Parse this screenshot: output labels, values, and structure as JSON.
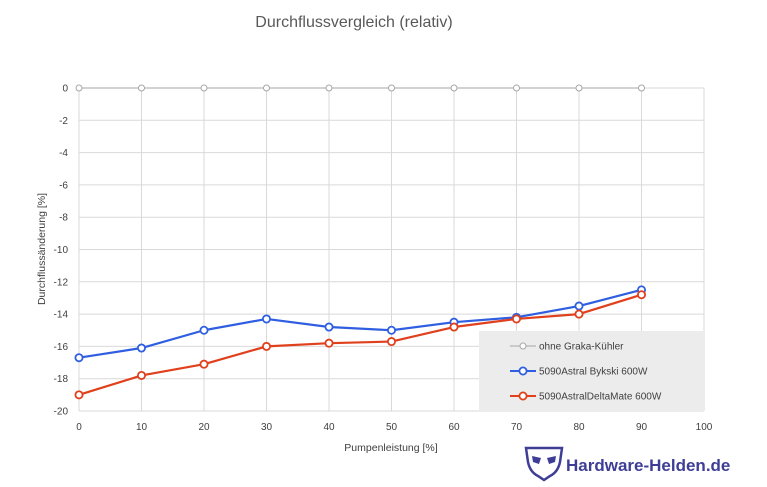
{
  "chart_data": {
    "type": "line",
    "title": "Durchflussvergleich (relativ)",
    "xlabel": "Pumpenleistung [%]",
    "ylabel": "Durchflussänderung [%]",
    "xlim": [
      0,
      100
    ],
    "ylim": [
      -20,
      0
    ],
    "x_ticks": [
      0,
      10,
      20,
      30,
      40,
      50,
      60,
      70,
      80,
      90,
      100
    ],
    "y_ticks": [
      0,
      -2,
      -4,
      -6,
      -8,
      -10,
      -12,
      -14,
      -16,
      -18,
      -20
    ],
    "grid": true,
    "legend_position": "bottom-right",
    "series": [
      {
        "name": "ohne Graka-Kühler",
        "color": "#a6a6a6",
        "x": [
          0,
          10,
          20,
          30,
          40,
          50,
          60,
          70,
          80,
          90
        ],
        "values": [
          0,
          0,
          0,
          0,
          0,
          0,
          0,
          0,
          0,
          0
        ]
      },
      {
        "name": "5090Astral Bykski 600W",
        "color": "#2f5fe0",
        "x": [
          0,
          10,
          20,
          30,
          40,
          50,
          60,
          70,
          80,
          90
        ],
        "values": [
          -16.7,
          -16.1,
          -15.0,
          -14.3,
          -14.8,
          -15.0,
          -14.5,
          -14.2,
          -13.5,
          -12.5
        ]
      },
      {
        "name": "5090AstralDeltaMate 600W",
        "color": "#e0401c",
        "x": [
          0,
          10,
          20,
          30,
          40,
          50,
          60,
          70,
          80,
          90
        ],
        "values": [
          -19.0,
          -17.8,
          -17.1,
          -16.0,
          -15.8,
          -15.7,
          -14.8,
          -14.3,
          -14.0,
          -12.8
        ]
      }
    ]
  },
  "watermark": {
    "text": "Hardware-Helden.de",
    "icon": "mask-logo-icon"
  }
}
